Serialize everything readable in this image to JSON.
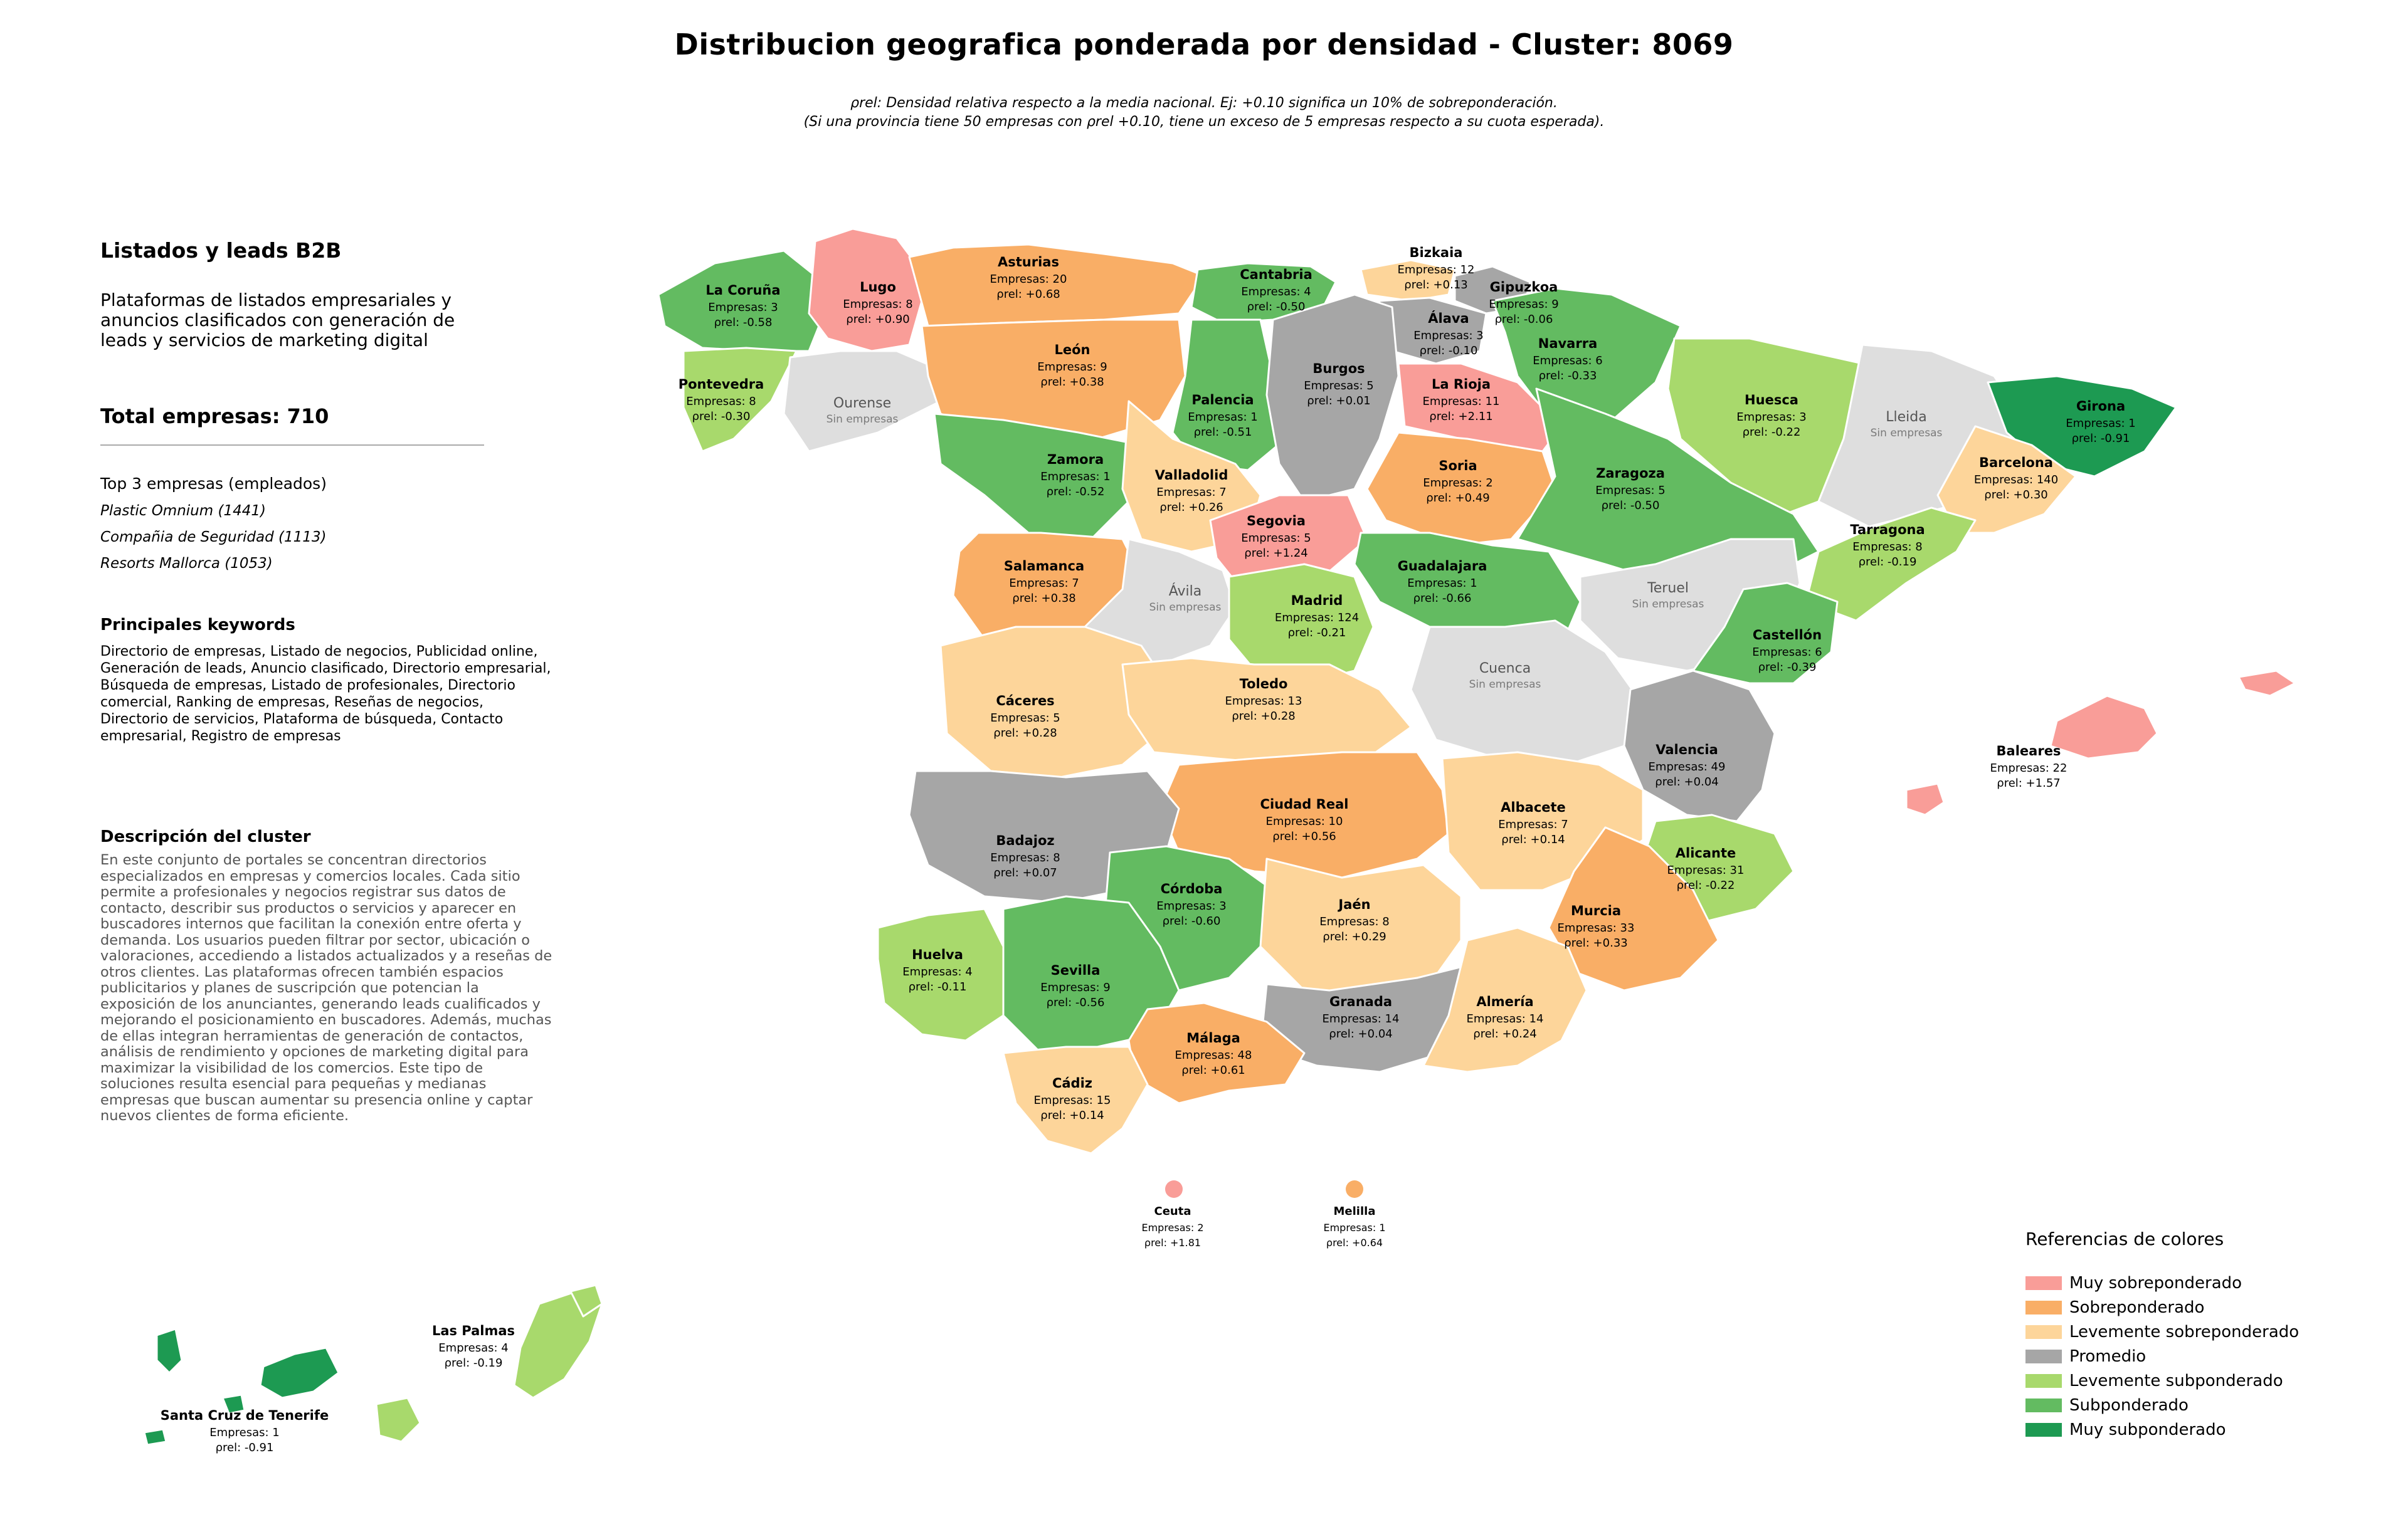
{
  "title": "Distribucion geografica ponderada por densidad - Cluster: 8069",
  "subtitle_line1": "ρrel: Densidad relativa respecto a la media nacional. Ej: +0.10 significa un 10% de sobreponderación.",
  "subtitle_line2": "(Si una provincia tiene 50 empresas con ρrel +0.10, tiene un exceso de 5 empresas respecto a su cuota esperada).",
  "panel": {
    "heading": "Listados y leads B2B",
    "description": "Plataformas de listados empresariales y anuncios clasificados con generación de leads y servicios de marketing digital",
    "total": "Total empresas: 710",
    "top3_title": "Top 3 empresas (empleados)",
    "top3": [
      "Plastic Omnium (1441)",
      "Compañia de Seguridad (1113)",
      "Resorts Mallorca (1053)"
    ],
    "keywords_title": "Principales keywords",
    "keywords": "Directorio de empresas, Listado de negocios, Publicidad online, Generación de leads, Anuncio clasificado, Directorio empresarial, Búsqueda de empresas, Listado de profesionales, Directorio comercial, Ranking de empresas, Reseñas de negocios, Directorio de servicios, Plataforma de búsqueda, Contacto empresarial, Registro de empresas",
    "cluster_title": "Descripción del cluster",
    "cluster_description": "En este conjunto de portales se concentran directorios especializados en empresas y comercios locales. Cada sitio permite a profesionales y negocios registrar sus datos de contacto, describir sus productos o servicios y aparecer en buscadores internos que facilitan la conexión entre oferta y demanda. Los usuarios pueden filtrar por sector, ubicación o valoraciones, accediendo a listados actualizados y a reseñas de otros clientes. Las plataformas ofrecen también espacios publicitarios y planes de suscripción que potencian la exposición de los anunciantes, generando leads cualificados y mejorando el posicionamiento en buscadores. Además, muchas de ellas integran herramientas de generación de contactos, análisis de rendimiento y opciones de marketing digital para maximizar la visibilidad de los comercios. Este tipo de soluciones resulta esencial para pequeñas y medianas empresas que buscan aumentar su presencia online y captar nuevos clientes de forma eficiente."
  },
  "empresas_prefix": "Empresas: ",
  "rho_label": "ρrel: ",
  "no_data_label": "Sin empresas",
  "legend": {
    "title": "Referencias de colores",
    "items": [
      {
        "label": "Muy sobreponderado",
        "color": "#f99d98"
      },
      {
        "label": "Sobreponderado",
        "color": "#f9ae66"
      },
      {
        "label": "Levemente sobreponderado",
        "color": "#fdd59a"
      },
      {
        "label": "Promedio",
        "color": "#a6a6a6"
      },
      {
        "label": "Levemente subponderado",
        "color": "#a8d96c"
      },
      {
        "label": "Subponderado",
        "color": "#63bb61"
      },
      {
        "label": "Muy subponderado",
        "color": "#1d9a52"
      }
    ]
  },
  "no_data_color": "#dedede",
  "provinces": [
    {
      "name": "La Coruña",
      "empresas": 3,
      "rho": "-0.58",
      "cat": 5
    },
    {
      "name": "Lugo",
      "empresas": 8,
      "rho": "+0.90",
      "cat": 0
    },
    {
      "name": "Asturias",
      "empresas": 20,
      "rho": "+0.68",
      "cat": 1
    },
    {
      "name": "Cantabria",
      "empresas": 4,
      "rho": "-0.50",
      "cat": 5
    },
    {
      "name": "Bizkaia",
      "empresas": 12,
      "rho": "+0.13",
      "cat": 2
    },
    {
      "name": "Gipuzkoa",
      "empresas": 9,
      "rho": "-0.06",
      "cat": 3
    },
    {
      "name": "Álava",
      "empresas": 3,
      "rho": "-0.10",
      "cat": 3
    },
    {
      "name": "Navarra",
      "empresas": 6,
      "rho": "-0.33",
      "cat": 5
    },
    {
      "name": "Pontevedra",
      "empresas": 8,
      "rho": "-0.30",
      "cat": 4
    },
    {
      "name": "Ourense",
      "empresas": null,
      "rho": null,
      "cat": null
    },
    {
      "name": "León",
      "empresas": 9,
      "rho": "+0.38",
      "cat": 1
    },
    {
      "name": "Palencia",
      "empresas": 1,
      "rho": "-0.51",
      "cat": 5
    },
    {
      "name": "Burgos",
      "empresas": 5,
      "rho": "+0.01",
      "cat": 3
    },
    {
      "name": "La Rioja",
      "empresas": 11,
      "rho": "+2.11",
      "cat": 0
    },
    {
      "name": "Huesca",
      "empresas": 3,
      "rho": "-0.22",
      "cat": 4
    },
    {
      "name": "Lleida",
      "empresas": null,
      "rho": null,
      "cat": null
    },
    {
      "name": "Girona",
      "empresas": 1,
      "rho": "-0.91",
      "cat": 6
    },
    {
      "name": "Barcelona",
      "empresas": 140,
      "rho": "+0.30",
      "cat": 2
    },
    {
      "name": "Zamora",
      "empresas": 1,
      "rho": "-0.52",
      "cat": 5
    },
    {
      "name": "Valladolid",
      "empresas": 7,
      "rho": "+0.26",
      "cat": 2
    },
    {
      "name": "Soria",
      "empresas": 2,
      "rho": "+0.49",
      "cat": 1
    },
    {
      "name": "Zaragoza",
      "empresas": 5,
      "rho": "-0.50",
      "cat": 5
    },
    {
      "name": "Tarragona",
      "empresas": 8,
      "rho": "-0.19",
      "cat": 4
    },
    {
      "name": "Segovia",
      "empresas": 5,
      "rho": "+1.24",
      "cat": 0
    },
    {
      "name": "Salamanca",
      "empresas": 7,
      "rho": "+0.38",
      "cat": 1
    },
    {
      "name": "Guadalajara",
      "empresas": 1,
      "rho": "-0.66",
      "cat": 5
    },
    {
      "name": "Ávila",
      "empresas": null,
      "rho": null,
      "cat": null
    },
    {
      "name": "Madrid",
      "empresas": 124,
      "rho": "-0.21",
      "cat": 4
    },
    {
      "name": "Teruel",
      "empresas": null,
      "rho": null,
      "cat": null
    },
    {
      "name": "Castellón",
      "empresas": 6,
      "rho": "-0.39",
      "cat": 5
    },
    {
      "name": "Cuenca",
      "empresas": null,
      "rho": null,
      "cat": null
    },
    {
      "name": "Cáceres",
      "empresas": 5,
      "rho": "+0.28",
      "cat": 2
    },
    {
      "name": "Toledo",
      "empresas": 13,
      "rho": "+0.28",
      "cat": 2
    },
    {
      "name": "Valencia",
      "empresas": 49,
      "rho": "+0.04",
      "cat": 3
    },
    {
      "name": "Baleares",
      "empresas": 22,
      "rho": "+1.57",
      "cat": 0
    },
    {
      "name": "Ciudad Real",
      "empresas": 10,
      "rho": "+0.56",
      "cat": 1
    },
    {
      "name": "Albacete",
      "empresas": 7,
      "rho": "+0.14",
      "cat": 2
    },
    {
      "name": "Badajoz",
      "empresas": 8,
      "rho": "+0.07",
      "cat": 3
    },
    {
      "name": "Alicante",
      "empresas": 31,
      "rho": "-0.22",
      "cat": 4
    },
    {
      "name": "Córdoba",
      "empresas": 3,
      "rho": "-0.60",
      "cat": 5
    },
    {
      "name": "Jaén",
      "empresas": 8,
      "rho": "+0.29",
      "cat": 2
    },
    {
      "name": "Murcia",
      "empresas": 33,
      "rho": "+0.33",
      "cat": 1
    },
    {
      "name": "Huelva",
      "empresas": 4,
      "rho": "-0.11",
      "cat": 4
    },
    {
      "name": "Sevilla",
      "empresas": 9,
      "rho": "-0.56",
      "cat": 5
    },
    {
      "name": "Granada",
      "empresas": 14,
      "rho": "+0.04",
      "cat": 3
    },
    {
      "name": "Almería",
      "empresas": 14,
      "rho": "+0.24",
      "cat": 2
    },
    {
      "name": "Málaga",
      "empresas": 48,
      "rho": "+0.61",
      "cat": 1
    },
    {
      "name": "Cádiz",
      "empresas": 15,
      "rho": "+0.14",
      "cat": 2
    },
    {
      "name": "Ceuta",
      "empresas": 2,
      "rho": "+1.81",
      "cat": 0
    },
    {
      "name": "Melilla",
      "empresas": 1,
      "rho": "+0.64",
      "cat": 1
    },
    {
      "name": "Las Palmas",
      "empresas": 4,
      "rho": "-0.19",
      "cat": 4
    },
    {
      "name": "Santa Cruz de Tenerife",
      "empresas": 1,
      "rho": "-0.91",
      "cat": 6
    }
  ]
}
